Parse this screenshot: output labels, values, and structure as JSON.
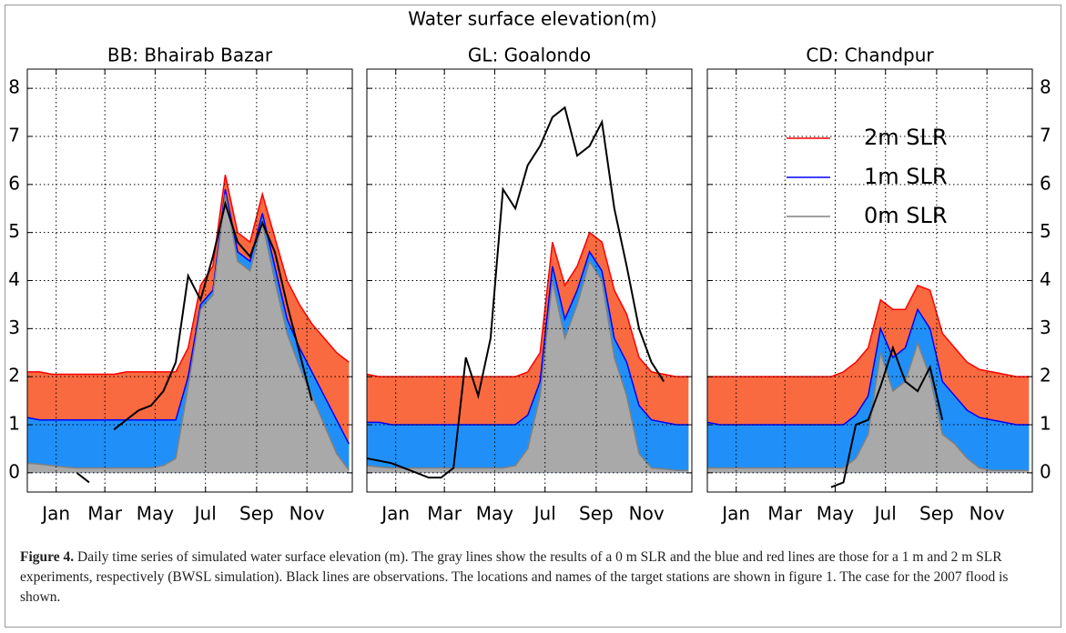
{
  "title": "Water surface elevation(m)",
  "chart_data": [
    {
      "type": "area",
      "title": "BB: Bhairab Bazar",
      "xlim": [
        -35,
        359
      ],
      "ylim": [
        -0.4,
        8.4
      ],
      "xticks": [
        {
          "value": 0,
          "label": "Jan"
        },
        {
          "value": 59,
          "label": "Mar"
        },
        {
          "value": 120,
          "label": "May"
        },
        {
          "value": 181,
          "label": "Jul"
        },
        {
          "value": 243,
          "label": "Sep"
        },
        {
          "value": 304,
          "label": "Nov"
        }
      ],
      "yticks": [
        0,
        1,
        2,
        3,
        4,
        5,
        6,
        7,
        8
      ],
      "yaxis": "left",
      "grid": true,
      "x": [
        -35,
        -20,
        -5,
        10,
        25,
        40,
        55,
        70,
        85,
        100,
        115,
        130,
        145,
        160,
        175,
        190,
        205,
        220,
        235,
        250,
        265,
        280,
        295,
        310,
        325,
        340,
        355
      ],
      "series": [
        {
          "color": "#ff0000",
          "fill": "#fa6a40",
          "values": [
            2.1,
            2.1,
            2.05,
            2.05,
            2.05,
            2.05,
            2.05,
            2.05,
            2.1,
            2.1,
            2.1,
            2.1,
            2.1,
            2.6,
            3.9,
            4.3,
            6.2,
            5.0,
            4.8,
            5.8,
            4.9,
            4.0,
            3.5,
            3.1,
            2.8,
            2.5,
            2.3
          ]
        },
        {
          "color": "#0000ff",
          "fill": "#2090f8",
          "values": [
            1.15,
            1.1,
            1.1,
            1.1,
            1.1,
            1.1,
            1.1,
            1.1,
            1.1,
            1.1,
            1.1,
            1.1,
            1.1,
            2.0,
            3.5,
            3.8,
            5.9,
            4.6,
            4.4,
            5.4,
            4.3,
            3.2,
            2.6,
            2.1,
            1.6,
            1.1,
            0.6
          ]
        },
        {
          "color": "#808080",
          "fill": "#a9a9a9",
          "values": [
            0.2,
            0.18,
            0.15,
            0.12,
            0.1,
            0.1,
            0.1,
            0.1,
            0.1,
            0.1,
            0.1,
            0.15,
            0.3,
            1.8,
            3.4,
            3.7,
            5.8,
            4.4,
            4.2,
            5.2,
            4.0,
            2.9,
            2.2,
            1.6,
            1.0,
            0.4,
            0.05
          ]
        },
        {
          "color": "#000000",
          "values": [
            null,
            null,
            null,
            null,
            0.0,
            -0.2,
            null,
            0.9,
            1.1,
            1.3,
            1.4,
            1.7,
            2.3,
            4.1,
            3.6,
            4.5,
            5.6,
            4.8,
            4.5,
            5.2,
            4.6,
            3.5,
            2.5,
            1.5,
            null,
            null,
            null
          ]
        }
      ]
    },
    {
      "type": "area",
      "title": "GL: Goalondo",
      "xlim": [
        -35,
        359
      ],
      "ylim": [
        -0.4,
        8.4
      ],
      "xticks": [
        {
          "value": 0,
          "label": "Jan"
        },
        {
          "value": 59,
          "label": "Mar"
        },
        {
          "value": 120,
          "label": "May"
        },
        {
          "value": 181,
          "label": "Jul"
        },
        {
          "value": 243,
          "label": "Sep"
        },
        {
          "value": 304,
          "label": "Nov"
        }
      ],
      "yticks": [
        0,
        1,
        2,
        3,
        4,
        5,
        6,
        7,
        8
      ],
      "yaxis": "none",
      "grid": true,
      "x": [
        -35,
        -20,
        -5,
        10,
        25,
        40,
        55,
        70,
        85,
        100,
        115,
        130,
        145,
        160,
        175,
        190,
        205,
        220,
        235,
        250,
        265,
        280,
        295,
        310,
        325,
        340,
        355
      ],
      "series": [
        {
          "color": "#ff0000",
          "fill": "#fa6a40",
          "values": [
            2.05,
            2.0,
            2.0,
            2.0,
            2.0,
            2.0,
            2.0,
            2.0,
            2.0,
            2.0,
            2.0,
            2.0,
            2.0,
            2.1,
            2.5,
            4.8,
            3.9,
            4.3,
            5.0,
            4.8,
            3.8,
            3.3,
            2.4,
            2.1,
            2.05,
            2.0,
            2.0
          ]
        },
        {
          "color": "#0000ff",
          "fill": "#2090f8",
          "values": [
            1.05,
            1.05,
            1.0,
            1.0,
            1.0,
            1.0,
            1.0,
            1.0,
            1.0,
            1.0,
            1.0,
            1.0,
            1.0,
            1.2,
            1.9,
            4.3,
            3.2,
            3.8,
            4.6,
            4.2,
            2.8,
            2.3,
            1.4,
            1.1,
            1.05,
            1.0,
            1.0
          ]
        },
        {
          "color": "#808080",
          "fill": "#a9a9a9",
          "values": [
            0.15,
            0.12,
            0.1,
            0.1,
            0.1,
            0.1,
            0.1,
            0.1,
            0.1,
            0.1,
            0.1,
            0.1,
            0.15,
            0.5,
            1.6,
            4.0,
            2.8,
            3.5,
            4.4,
            4.0,
            2.4,
            1.6,
            0.4,
            0.1,
            0.08,
            0.05,
            0.05
          ]
        },
        {
          "color": "#000000",
          "values": [
            0.3,
            0.25,
            0.2,
            0.1,
            0.0,
            -0.1,
            -0.1,
            0.1,
            2.4,
            1.6,
            2.8,
            5.9,
            5.5,
            6.4,
            6.8,
            7.4,
            7.6,
            6.6,
            6.8,
            7.3,
            5.5,
            4.3,
            3.0,
            2.3,
            1.9,
            null,
            null
          ]
        }
      ]
    },
    {
      "type": "area",
      "title": "CD: Chandpur",
      "xlim": [
        -35,
        359
      ],
      "ylim": [
        -0.4,
        8.4
      ],
      "xticks": [
        {
          "value": 0,
          "label": "Jan"
        },
        {
          "value": 59,
          "label": "Mar"
        },
        {
          "value": 120,
          "label": "May"
        },
        {
          "value": 181,
          "label": "Jul"
        },
        {
          "value": 243,
          "label": "Sep"
        },
        {
          "value": 304,
          "label": "Nov"
        }
      ],
      "yticks": [
        0,
        1,
        2,
        3,
        4,
        5,
        6,
        7,
        8
      ],
      "yaxis": "right",
      "grid": true,
      "legend": "upper right",
      "x": [
        -35,
        -20,
        -5,
        10,
        25,
        40,
        55,
        70,
        85,
        100,
        115,
        130,
        145,
        160,
        175,
        190,
        205,
        220,
        235,
        250,
        265,
        280,
        295,
        310,
        325,
        340,
        355
      ],
      "series": [
        {
          "name": "2m SLR",
          "color": "#ff0000",
          "fill": "#fa6a40",
          "values": [
            2.0,
            2.0,
            2.0,
            2.0,
            2.0,
            2.0,
            2.0,
            2.0,
            2.0,
            2.0,
            2.0,
            2.1,
            2.3,
            2.6,
            3.6,
            3.4,
            3.4,
            3.9,
            3.8,
            2.9,
            2.6,
            2.3,
            2.15,
            2.1,
            2.05,
            2.0,
            2.0
          ]
        },
        {
          "name": "1m SLR",
          "color": "#0000ff",
          "fill": "#2090f8",
          "values": [
            1.05,
            1.0,
            1.0,
            1.0,
            1.0,
            1.0,
            1.0,
            1.0,
            1.0,
            1.0,
            1.0,
            1.0,
            1.2,
            1.6,
            3.0,
            2.4,
            2.6,
            3.4,
            3.0,
            1.9,
            1.6,
            1.3,
            1.15,
            1.1,
            1.05,
            1.0,
            1.0
          ]
        },
        {
          "name": "0m SLR",
          "color": "#808080",
          "fill": "#a9a9a9",
          "values": [
            0.1,
            0.1,
            0.1,
            0.1,
            0.1,
            0.1,
            0.1,
            0.1,
            0.1,
            0.1,
            0.1,
            0.1,
            0.3,
            0.8,
            2.5,
            1.7,
            1.9,
            2.7,
            2.0,
            0.8,
            0.6,
            0.3,
            0.1,
            0.05,
            0.05,
            0.05,
            0.05
          ]
        },
        {
          "color": "#000000",
          "values": [
            null,
            null,
            null,
            null,
            null,
            null,
            null,
            null,
            null,
            null,
            -0.3,
            -0.2,
            1.0,
            1.1,
            1.8,
            2.6,
            1.9,
            1.7,
            2.2,
            1.1,
            null,
            null,
            null,
            null,
            null,
            null,
            null
          ]
        }
      ]
    }
  ],
  "caption": {
    "label": "Figure 4.",
    "text": "Daily time series of simulated water surface elevation (m). The gray lines show the results of a 0 m SLR and the blue and red lines are those for a 1 m and 2 m SLR experiments, respectively (BWSL simulation). Black lines are observations. The locations and names of the target stations are shown in figure 1. The case for the 2007 flood is shown."
  }
}
